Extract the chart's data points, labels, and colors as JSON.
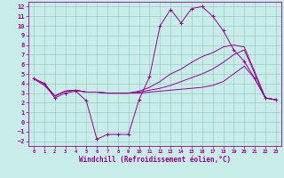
{
  "xlabel": "Windchill (Refroidissement éolien,°C)",
  "xlim": [
    -0.5,
    23.5
  ],
  "ylim": [
    -2.5,
    12.5
  ],
  "xticks": [
    0,
    1,
    2,
    3,
    4,
    5,
    6,
    7,
    8,
    9,
    10,
    11,
    12,
    13,
    14,
    15,
    16,
    17,
    18,
    19,
    20,
    21,
    22,
    23
  ],
  "yticks": [
    -2,
    -1,
    0,
    1,
    2,
    3,
    4,
    5,
    6,
    7,
    8,
    9,
    10,
    11,
    12
  ],
  "background_color": "#c8ece8",
  "line_color": "#990099",
  "grid_color": "#99cccc",
  "lines": [
    {
      "x": [
        0,
        1,
        2,
        3,
        4,
        5,
        6,
        7,
        8,
        9,
        10,
        11,
        12,
        13,
        14,
        15,
        16,
        17,
        18,
        19,
        20,
        21,
        22,
        23
      ],
      "y": [
        4.5,
        4.0,
        2.5,
        3.0,
        3.2,
        2.2,
        -1.8,
        -1.3,
        -1.3,
        -1.3,
        2.3,
        4.7,
        10.0,
        11.7,
        10.3,
        11.8,
        12.0,
        11.0,
        9.5,
        7.5,
        6.3,
        4.5,
        2.5,
        2.3
      ],
      "marker": "+"
    },
    {
      "x": [
        0,
        1,
        2,
        3,
        4,
        5,
        6,
        7,
        8,
        9,
        10,
        11,
        12,
        13,
        14,
        15,
        16,
        17,
        18,
        19,
        20,
        21,
        22,
        23
      ],
      "y": [
        4.5,
        4.0,
        2.7,
        3.2,
        3.3,
        3.1,
        3.1,
        3.0,
        3.0,
        3.0,
        3.0,
        3.1,
        3.2,
        3.3,
        3.4,
        3.5,
        3.6,
        3.8,
        4.2,
        5.0,
        5.8,
        4.5,
        2.5,
        2.3
      ],
      "marker": null
    },
    {
      "x": [
        0,
        1,
        2,
        3,
        4,
        5,
        6,
        7,
        8,
        9,
        10,
        11,
        12,
        13,
        14,
        15,
        16,
        17,
        18,
        19,
        20,
        21,
        22,
        23
      ],
      "y": [
        4.5,
        3.8,
        2.7,
        3.2,
        3.3,
        3.1,
        3.1,
        3.0,
        3.0,
        3.0,
        3.1,
        3.3,
        3.5,
        3.8,
        4.2,
        4.6,
        5.0,
        5.5,
        6.2,
        7.0,
        7.5,
        5.0,
        2.5,
        2.3
      ],
      "marker": null
    },
    {
      "x": [
        0,
        1,
        2,
        3,
        4,
        5,
        6,
        7,
        8,
        9,
        10,
        11,
        12,
        13,
        14,
        15,
        16,
        17,
        18,
        19,
        20,
        21,
        22,
        23
      ],
      "y": [
        4.5,
        4.0,
        2.7,
        3.2,
        3.3,
        3.1,
        3.1,
        3.0,
        3.0,
        3.0,
        3.2,
        3.6,
        4.2,
        5.0,
        5.5,
        6.2,
        6.8,
        7.2,
        7.8,
        8.0,
        7.8,
        5.2,
        2.5,
        2.3
      ],
      "marker": null
    }
  ]
}
